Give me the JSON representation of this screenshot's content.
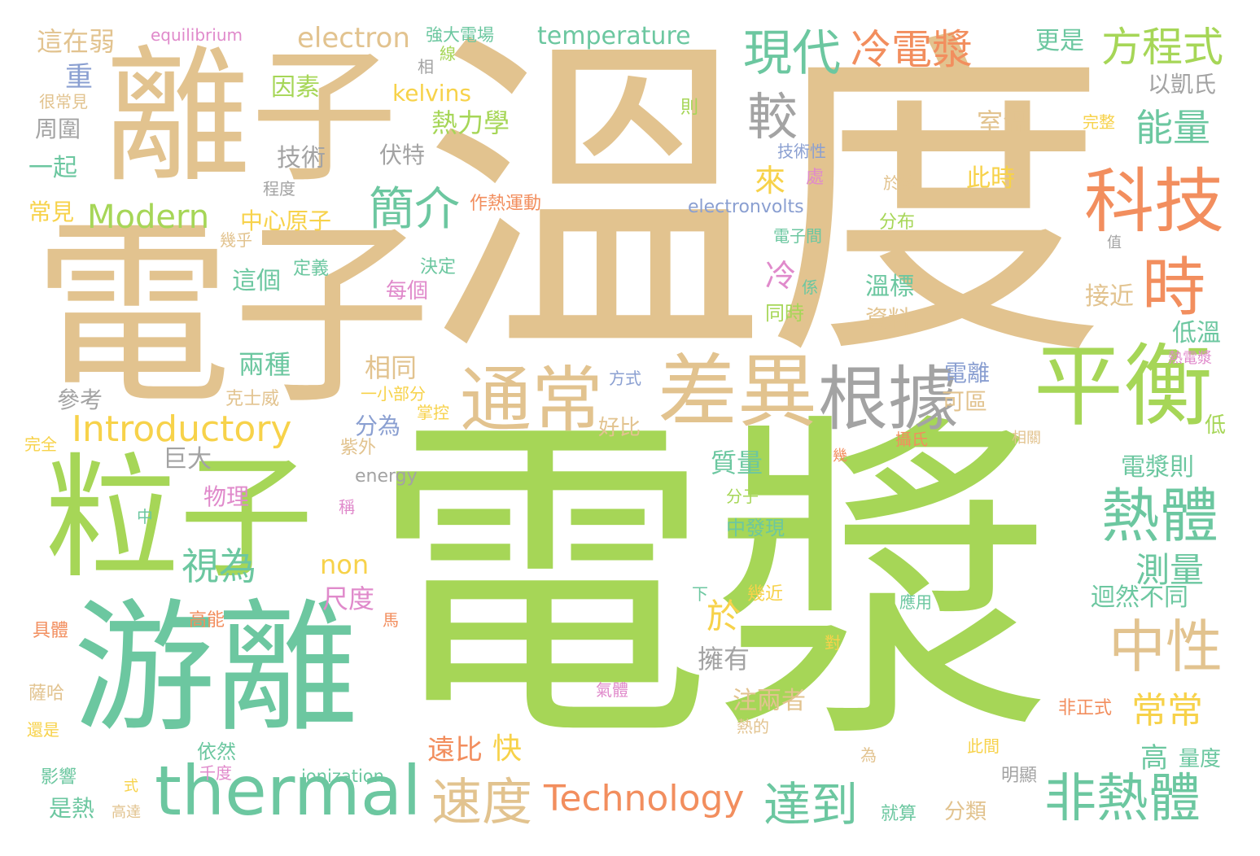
{
  "palette": {
    "tan": "#E2C38F",
    "green": "#A6D657",
    "teal": "#6CC7A0",
    "gray": "#A3A3A3",
    "orange": "#F28E5E",
    "yellow": "#F7D24A",
    "purple": "#8A9FD1",
    "pink": "#E08ACB"
  },
  "words": [
    {
      "text": "溫度",
      "color": "tan"
    },
    {
      "text": "電漿",
      "color": "green"
    },
    {
      "text": "電子",
      "color": "tan"
    },
    {
      "text": "離子",
      "color": "tan"
    },
    {
      "text": "游離",
      "color": "teal"
    },
    {
      "text": "粒子",
      "color": "green"
    },
    {
      "text": "thermal",
      "color": "teal"
    },
    {
      "text": "平衡",
      "color": "green"
    },
    {
      "text": "差異",
      "color": "tan"
    },
    {
      "text": "通常",
      "color": "tan"
    },
    {
      "text": "根據",
      "color": "gray"
    },
    {
      "text": "科技",
      "color": "orange"
    },
    {
      "text": "時",
      "color": "orange"
    },
    {
      "text": "熱體",
      "color": "teal"
    },
    {
      "text": "中性",
      "color": "tan"
    },
    {
      "text": "非熱體",
      "color": "teal"
    },
    {
      "text": "達到",
      "color": "teal"
    },
    {
      "text": "速度",
      "color": "tan"
    },
    {
      "text": "Technology",
      "color": "orange"
    },
    {
      "text": "Introductory",
      "color": "yellow"
    },
    {
      "text": "Modern",
      "color": "green"
    },
    {
      "text": "現代",
      "color": "teal"
    },
    {
      "text": "冷電漿",
      "color": "orange"
    },
    {
      "text": "方程式",
      "color": "green"
    },
    {
      "text": "簡介",
      "color": "teal"
    },
    {
      "text": "較",
      "color": "gray"
    },
    {
      "text": "能量",
      "color": "teal"
    },
    {
      "text": "常常",
      "color": "yellow"
    },
    {
      "text": "測量",
      "color": "teal"
    },
    {
      "text": "視為",
      "color": "teal"
    },
    {
      "text": "於",
      "color": "yellow"
    },
    {
      "text": "electron",
      "color": "tan"
    },
    {
      "text": "temperature",
      "color": "teal"
    },
    {
      "text": "equilibrium",
      "color": "pink"
    },
    {
      "text": "這在弱",
      "color": "tan"
    },
    {
      "text": "強大電場",
      "color": "teal"
    },
    {
      "text": "更是",
      "color": "teal"
    },
    {
      "text": "因素",
      "color": "green"
    },
    {
      "text": "kelvins",
      "color": "yellow"
    },
    {
      "text": "熱力學",
      "color": "green"
    },
    {
      "text": "技術",
      "color": "gray"
    },
    {
      "text": "伏特",
      "color": "gray"
    },
    {
      "text": "中心原子",
      "color": "yellow"
    },
    {
      "text": "electronvolts",
      "color": "purple"
    },
    {
      "text": "以凱氏",
      "color": "gray"
    },
    {
      "text": "室溫",
      "color": "tan"
    },
    {
      "text": "此時",
      "color": "yellow"
    },
    {
      "text": "來",
      "color": "yellow"
    },
    {
      "text": "冷",
      "color": "pink"
    },
    {
      "text": "這個",
      "color": "teal"
    },
    {
      "text": "溫標",
      "color": "teal"
    },
    {
      "text": "資料",
      "color": "tan"
    },
    {
      "text": "接近",
      "color": "tan"
    },
    {
      "text": "低溫",
      "color": "teal"
    },
    {
      "text": "相同",
      "color": "tan"
    },
    {
      "text": "兩種",
      "color": "teal"
    },
    {
      "text": "電離",
      "color": "purple"
    },
    {
      "text": "可區",
      "color": "tan"
    },
    {
      "text": "分為",
      "color": "purple"
    },
    {
      "text": "巨大",
      "color": "gray"
    },
    {
      "text": "質量",
      "color": "teal"
    },
    {
      "text": "電漿則",
      "color": "teal"
    },
    {
      "text": "物理",
      "color": "pink"
    },
    {
      "text": "non",
      "color": "yellow"
    },
    {
      "text": "尺度",
      "color": "pink"
    },
    {
      "text": "擁有",
      "color": "gray"
    },
    {
      "text": "迴然不同",
      "color": "teal"
    },
    {
      "text": "注兩者",
      "color": "tan"
    },
    {
      "text": "遠比",
      "color": "orange"
    },
    {
      "text": "快",
      "color": "yellow"
    },
    {
      "text": "高",
      "color": "teal"
    },
    {
      "text": "量度",
      "color": "teal"
    },
    {
      "text": "分類",
      "color": "tan"
    },
    {
      "text": "ionization",
      "color": "teal"
    },
    {
      "text": "energy",
      "color": "gray"
    },
    {
      "text": "參考",
      "color": "gray"
    },
    {
      "text": "一起",
      "color": "teal"
    },
    {
      "text": "周圍",
      "color": "gray"
    },
    {
      "text": "常見",
      "color": "yellow"
    },
    {
      "text": "很常見",
      "color": "tan"
    },
    {
      "text": "重",
      "color": "purple"
    },
    {
      "text": "完全",
      "color": "yellow"
    },
    {
      "text": "作熱運動",
      "color": "orange"
    },
    {
      "text": "決定",
      "color": "teal"
    },
    {
      "text": "定義",
      "color": "teal"
    },
    {
      "text": "每個",
      "color": "pink"
    },
    {
      "text": "程度",
      "color": "gray"
    },
    {
      "text": "幾乎",
      "color": "tan"
    },
    {
      "text": "同時",
      "color": "green"
    },
    {
      "text": "係",
      "color": "teal"
    },
    {
      "text": "電子間",
      "color": "teal"
    },
    {
      "text": "分布",
      "color": "green"
    },
    {
      "text": "於熱",
      "color": "tan"
    },
    {
      "text": "處",
      "color": "pink"
    },
    {
      "text": "技術性",
      "color": "purple"
    },
    {
      "text": "完整",
      "color": "yellow"
    },
    {
      "text": "則",
      "color": "green"
    },
    {
      "text": "線",
      "color": "green"
    },
    {
      "text": "相",
      "color": "gray"
    },
    {
      "text": "方式",
      "color": "purple"
    },
    {
      "text": "好比",
      "color": "tan"
    },
    {
      "text": "克士威",
      "color": "tan"
    },
    {
      "text": "一小部分",
      "color": "yellow"
    },
    {
      "text": "掌控",
      "color": "yellow"
    },
    {
      "text": "紫外",
      "color": "tan"
    },
    {
      "text": "攝氏",
      "color": "orange"
    },
    {
      "text": "相關",
      "color": "tan"
    },
    {
      "text": "熱電漿",
      "color": "pink"
    },
    {
      "text": "中",
      "color": "teal"
    },
    {
      "text": "稱",
      "color": "pink"
    },
    {
      "text": "分子",
      "color": "green"
    },
    {
      "text": "中發現",
      "color": "teal"
    },
    {
      "text": "幾",
      "color": "orange"
    },
    {
      "text": "低",
      "color": "green"
    },
    {
      "text": "高能",
      "color": "orange"
    },
    {
      "text": "具體",
      "color": "orange"
    },
    {
      "text": "馬",
      "color": "orange"
    },
    {
      "text": "下",
      "color": "teal"
    },
    {
      "text": "幾近",
      "color": "yellow"
    },
    {
      "text": "應用",
      "color": "teal"
    },
    {
      "text": "對",
      "color": "yellow"
    },
    {
      "text": "薩哈",
      "color": "tan"
    },
    {
      "text": "氣體",
      "color": "pink"
    },
    {
      "text": "還是",
      "color": "yellow"
    },
    {
      "text": "依然",
      "color": "teal"
    },
    {
      "text": "千度",
      "color": "pink"
    },
    {
      "text": "影響",
      "color": "teal"
    },
    {
      "text": "式",
      "color": "yellow"
    },
    {
      "text": "是熱",
      "color": "teal"
    },
    {
      "text": "高達",
      "color": "tan"
    },
    {
      "text": "熱的",
      "color": "tan"
    },
    {
      "text": "非正式",
      "color": "orange"
    },
    {
      "text": "此間",
      "color": "yellow"
    },
    {
      "text": "為",
      "color": "tan"
    },
    {
      "text": "明顯",
      "color": "gray"
    },
    {
      "text": "就算",
      "color": "teal"
    },
    {
      "text": "值",
      "color": "gray"
    }
  ]
}
